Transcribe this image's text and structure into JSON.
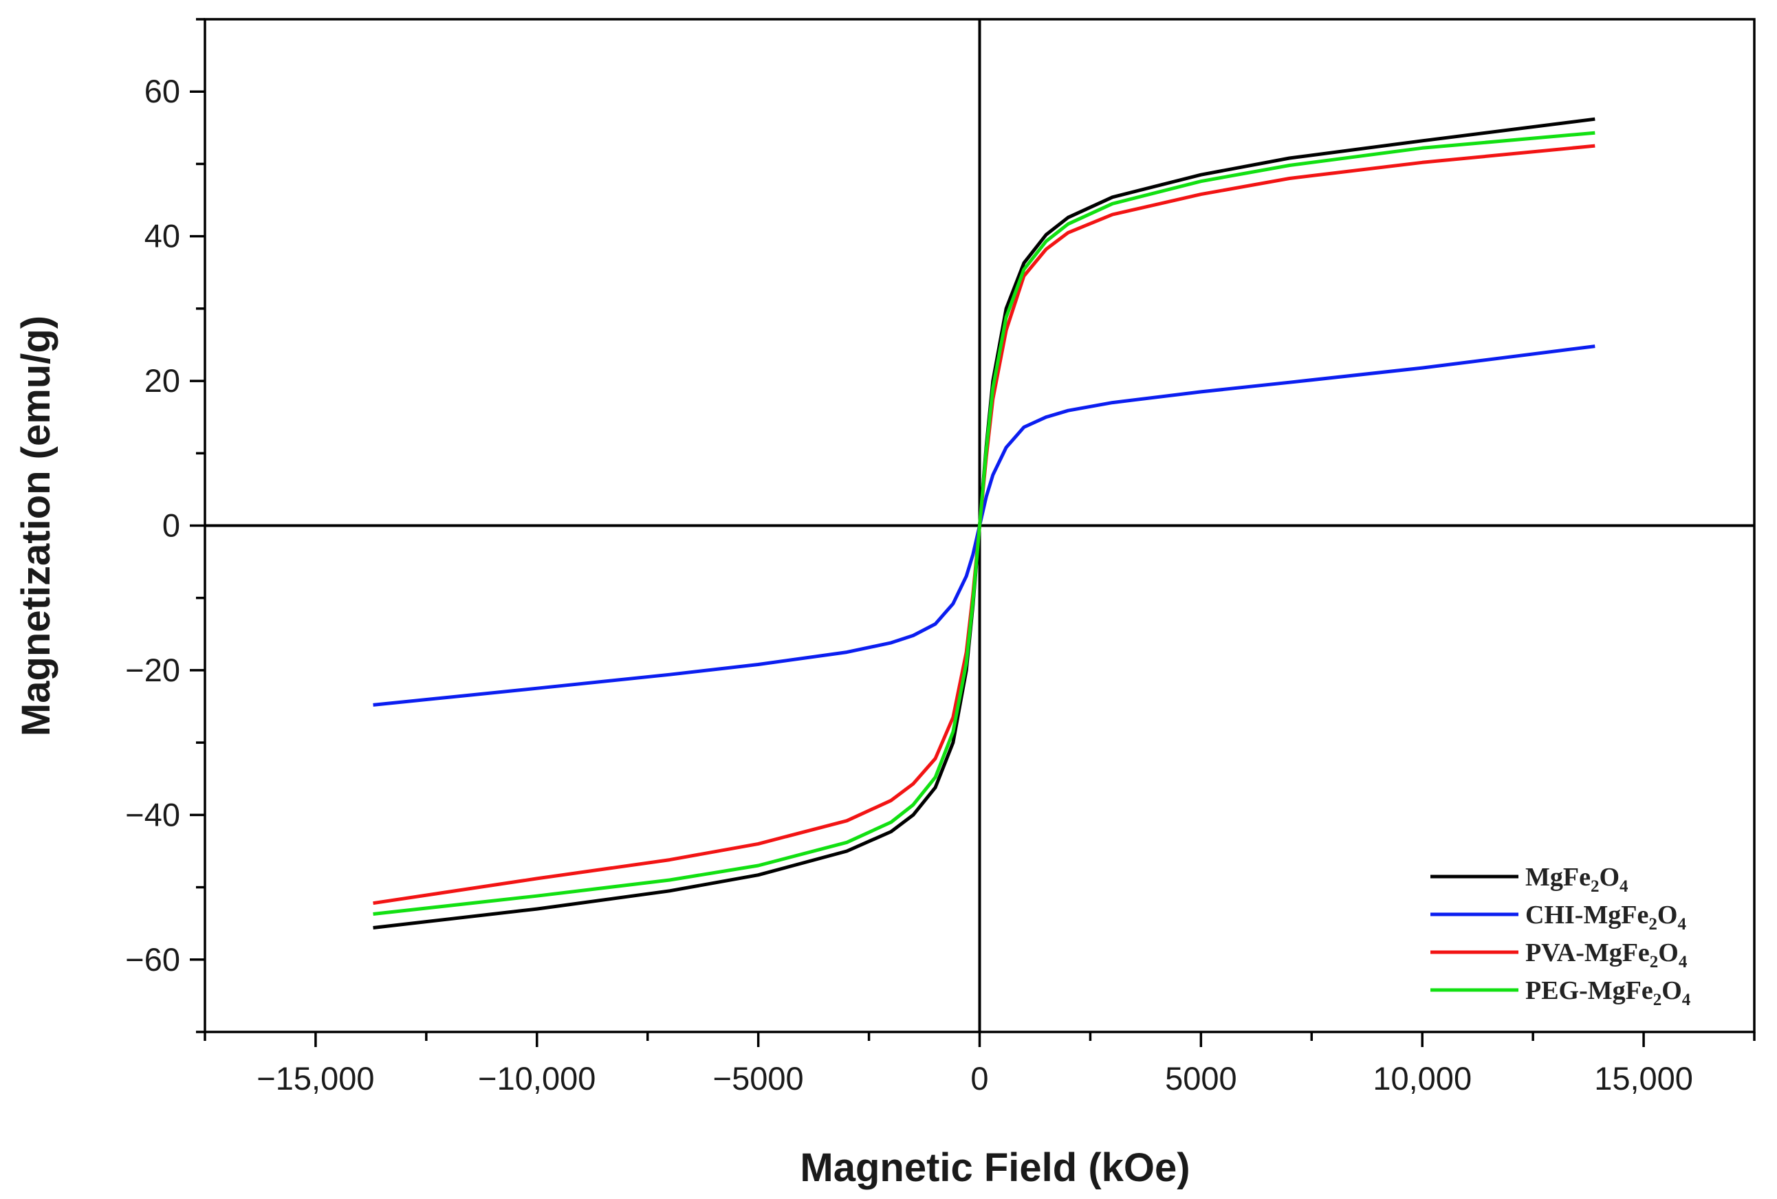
{
  "chart_data": {
    "type": "line",
    "title": "",
    "xlabel": "Magnetic Field (kOe)",
    "ylabel": "Magnetization (emu/g)",
    "xlim": [
      -17500,
      17500
    ],
    "ylim": [
      -70,
      70
    ],
    "x_ticks": [
      -15000,
      -10000,
      -5000,
      0,
      5000,
      10000,
      15000
    ],
    "x_tick_labels": [
      "−15,000",
      "−10,000",
      "−5000",
      "0",
      "5000",
      "10,000",
      "15,000"
    ],
    "y_ticks": [
      -60,
      -40,
      -20,
      0,
      20,
      40,
      60
    ],
    "y_tick_labels": [
      "−60",
      "−40",
      "−20",
      "0",
      "20",
      "40",
      "60"
    ],
    "grid": false,
    "zero_lines": true,
    "legend_position": "bottom-right",
    "series": [
      {
        "name": "MgFe2O4",
        "legend": {
          "pre": "MgFe",
          "sub1": "2",
          "mid": "O",
          "sub2": "4"
        },
        "color": "#000000",
        "x": [
          -13700,
          -10000,
          -7000,
          -5000,
          -3000,
          -2000,
          -1500,
          -1000,
          -600,
          -300,
          -150,
          0,
          150,
          300,
          600,
          1000,
          1500,
          2000,
          3000,
          5000,
          7000,
          10000,
          13900
        ],
        "y": [
          -55.6,
          -53.0,
          -50.5,
          -48.3,
          -45.0,
          -42.3,
          -40.0,
          -36.2,
          -30.0,
          -20.0,
          -11.0,
          0,
          11.0,
          20.0,
          30.0,
          36.3,
          40.2,
          42.6,
          45.4,
          48.5,
          50.8,
          53.2,
          56.2
        ]
      },
      {
        "name": "CHI-MgFe2O4",
        "legend": {
          "pre": "CHI-MgFe",
          "sub1": "2",
          "mid": "O",
          "sub2": "4"
        },
        "color": "#0b1ef0",
        "x": [
          -13700,
          -10000,
          -7000,
          -5000,
          -3000,
          -2000,
          -1500,
          -1000,
          -600,
          -300,
          -150,
          0,
          150,
          300,
          600,
          1000,
          1500,
          2000,
          3000,
          5000,
          7000,
          10000,
          13900
        ],
        "y": [
          -24.8,
          -22.5,
          -20.6,
          -19.2,
          -17.5,
          -16.2,
          -15.2,
          -13.6,
          -10.8,
          -7.0,
          -4.0,
          0,
          4.0,
          7.0,
          10.8,
          13.6,
          15.0,
          15.9,
          17.0,
          18.5,
          19.8,
          21.8,
          24.8
        ]
      },
      {
        "name": "PVA-MgFe2O4",
        "legend": {
          "pre": "PVA-MgFe",
          "sub1": "2",
          "mid": "O",
          "sub2": "4"
        },
        "color": "#f21414",
        "x": [
          -13700,
          -10000,
          -7000,
          -5000,
          -3000,
          -2000,
          -1500,
          -1000,
          -600,
          -300,
          -150,
          0,
          150,
          300,
          600,
          1000,
          1500,
          2000,
          3000,
          5000,
          7000,
          10000,
          13900
        ],
        "y": [
          -52.2,
          -48.8,
          -46.2,
          -44.0,
          -40.8,
          -38.0,
          -35.7,
          -32.2,
          -26.5,
          -17.5,
          -9.5,
          0,
          9.5,
          17.5,
          27.0,
          34.5,
          38.2,
          40.5,
          43.0,
          45.8,
          48.0,
          50.2,
          52.5
        ]
      },
      {
        "name": "PEG-MgFe2O4",
        "legend": {
          "pre": "PEG-MgFe",
          "sub1": "2",
          "mid": "O",
          "sub2": "4"
        },
        "color": "#12e012",
        "x": [
          -13700,
          -10000,
          -7000,
          -5000,
          -3000,
          -2000,
          -1500,
          -1000,
          -600,
          -300,
          -150,
          0,
          150,
          300,
          600,
          1000,
          1500,
          2000,
          3000,
          5000,
          7000,
          10000,
          13900
        ],
        "y": [
          -53.7,
          -51.2,
          -49.0,
          -47.0,
          -43.8,
          -41.0,
          -38.6,
          -34.8,
          -28.5,
          -19.0,
          -10.5,
          0,
          10.5,
          19.0,
          28.8,
          35.4,
          39.3,
          41.7,
          44.5,
          47.6,
          49.8,
          52.2,
          54.3
        ]
      }
    ]
  }
}
